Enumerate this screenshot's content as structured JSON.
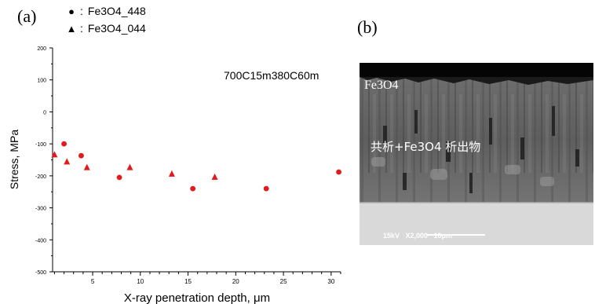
{
  "panels": {
    "a": {
      "label": "(a)"
    },
    "b": {
      "label": "(b)"
    }
  },
  "chart_data": {
    "type": "scatter",
    "title": "",
    "annotation": "700C15m380C60m",
    "xlabel": "X-ray penetration depth, μm",
    "ylabel": "Stress, MPa",
    "xlim": [
      0.8,
      31
    ],
    "ylim": [
      -500,
      200
    ],
    "xticks": [
      5,
      10,
      15,
      20,
      25,
      30
    ],
    "yticks": [
      -500,
      -400,
      -300,
      -200,
      -100,
      0,
      100,
      200
    ],
    "grid": false,
    "legend_position": "top-left",
    "marker_color": "#e31a1c",
    "series": [
      {
        "name": "Fe3O4_448",
        "marker": "circle",
        "marker_symbol": "●",
        "points": [
          {
            "x": 2.0,
            "y": -100
          },
          {
            "x": 3.8,
            "y": -137
          },
          {
            "x": 7.8,
            "y": -205
          },
          {
            "x": 15.5,
            "y": -240
          },
          {
            "x": 23.2,
            "y": -240
          },
          {
            "x": 30.8,
            "y": -188
          }
        ]
      },
      {
        "name": "Fe3O4_044",
        "marker": "triangle",
        "marker_symbol": "▲",
        "points": [
          {
            "x": 1.0,
            "y": -135
          },
          {
            "x": 2.3,
            "y": -157
          },
          {
            "x": 4.4,
            "y": -175
          },
          {
            "x": 8.9,
            "y": -175
          },
          {
            "x": 13.3,
            "y": -195
          },
          {
            "x": 17.8,
            "y": -205
          }
        ]
      }
    ]
  },
  "legend": {
    "separator": ":"
  },
  "micrograph": {
    "layer_label": "Fe3O4",
    "region_label": "共析+Fe3O4 析出物",
    "scale_info": "15kV   X2,000   10μm"
  }
}
